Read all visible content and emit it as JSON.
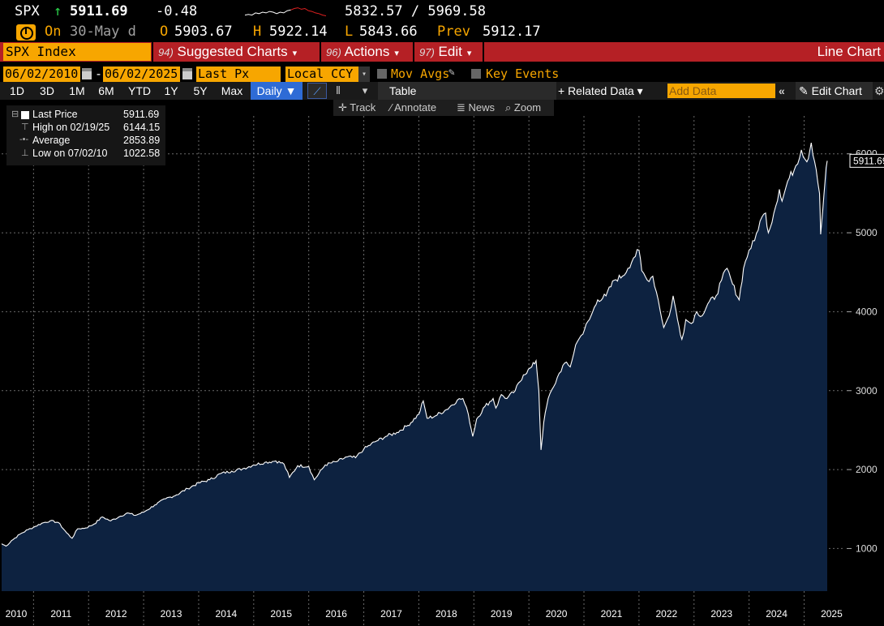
{
  "quote": {
    "ticker": "SPX",
    "arrow": "↑",
    "last": "5911.69",
    "change": "-0.48",
    "range": "5832.57 / 5969.58",
    "sparkline": [
      0.3,
      0.35,
      0.3,
      0.45,
      0.4,
      0.5,
      0.45,
      0.55,
      0.5,
      0.4,
      0.5,
      0.45,
      0.6,
      0.65,
      0.75,
      0.8,
      0.7,
      0.75,
      0.6,
      0.55,
      0.45,
      0.4,
      0.3,
      0.25
    ]
  },
  "subquote": {
    "on_label": "On",
    "date": "30-May d",
    "open_label": "O",
    "open": "5903.67",
    "high_label": "H",
    "high": "5922.14",
    "low_label": "L",
    "low": "5843.66",
    "prev_label": "Prev",
    "prev": "5912.17"
  },
  "menubar": {
    "security": "SPX Index",
    "suggested_num": "94)",
    "suggested": "Suggested Charts",
    "actions_num": "96)",
    "actions": "Actions",
    "edit_num": "97)",
    "edit": "Edit",
    "chart_type": "Line Chart"
  },
  "settings": {
    "start_date": "06/02/2010",
    "dash": "-",
    "end_date": "06/02/2025",
    "field": "Last Px",
    "currency": "Local CCY",
    "mov_avgs": "Mov Avgs",
    "key_events": "Key Events"
  },
  "toolbar": {
    "periods": [
      "1D",
      "3D",
      "1M",
      "6M",
      "YTD",
      "1Y",
      "5Y",
      "Max"
    ],
    "frequency": "Daily ▼",
    "table": "Table",
    "related": "+ Related Data ▾",
    "add_data_placeholder": "Add Data",
    "collapse": "«",
    "edit_chart": "✎ Edit Chart",
    "gear": "⚙"
  },
  "tools": {
    "track": "Track",
    "annotate": "Annotate",
    "news": "News",
    "zoom": "Zoom"
  },
  "legend": {
    "rows": [
      {
        "icon": "⊟",
        "name": "Last Price",
        "value": "5911.69"
      },
      {
        "icon": "⊤",
        "name": "High on 02/19/25",
        "value": "6144.15"
      },
      {
        "icon": "-•-",
        "name": "Average",
        "value": "2853.89"
      },
      {
        "icon": "⊥",
        "name": "Low on 07/02/10",
        "value": "1022.58"
      }
    ]
  },
  "chart_data": {
    "type": "area",
    "title": "SPX Index",
    "xlabel": "",
    "ylabel": "",
    "x_range": [
      2010.42,
      2025.42
    ],
    "ylim": [
      460,
      6480
    ],
    "yticks": [
      1000,
      2000,
      3000,
      4000,
      5000,
      6000
    ],
    "xtick_labels": [
      "2010",
      "2011",
      "2012",
      "2013",
      "2014",
      "2015",
      "2016",
      "2017",
      "2018",
      "2019",
      "2020",
      "2021",
      "2022",
      "2023",
      "2024",
      "2025"
    ],
    "last_value_label": "5911.69",
    "series": [
      {
        "name": "Last Price",
        "x": [
          2010.42,
          2010.5,
          2010.6,
          2010.75,
          2010.9,
          2011.0,
          2011.15,
          2011.3,
          2011.45,
          2011.6,
          2011.7,
          2011.8,
          2011.95,
          2012.1,
          2012.25,
          2012.4,
          2012.55,
          2012.7,
          2012.85,
          2013.0,
          2013.2,
          2013.4,
          2013.6,
          2013.8,
          2014.0,
          2014.2,
          2014.4,
          2014.6,
          2014.8,
          2015.0,
          2015.2,
          2015.4,
          2015.55,
          2015.65,
          2015.8,
          2016.0,
          2016.1,
          2016.3,
          2016.5,
          2016.7,
          2016.85,
          2017.0,
          2017.2,
          2017.4,
          2017.6,
          2017.8,
          2018.0,
          2018.08,
          2018.15,
          2018.3,
          2018.5,
          2018.7,
          2018.8,
          2018.9,
          2018.98,
          2019.05,
          2019.2,
          2019.35,
          2019.4,
          2019.5,
          2019.6,
          2019.75,
          2019.9,
          2020.05,
          2020.13,
          2020.18,
          2020.22,
          2020.27,
          2020.35,
          2020.45,
          2020.55,
          2020.65,
          2020.75,
          2020.85,
          2020.95,
          2021.1,
          2021.25,
          2021.4,
          2021.55,
          2021.7,
          2021.8,
          2021.9,
          2022.0,
          2022.05,
          2022.15,
          2022.25,
          2022.35,
          2022.45,
          2022.55,
          2022.62,
          2022.7,
          2022.78,
          2022.85,
          2022.95,
          2023.05,
          2023.15,
          2023.25,
          2023.4,
          2023.5,
          2023.6,
          2023.7,
          2023.82,
          2023.9,
          2024.0,
          2024.1,
          2024.2,
          2024.3,
          2024.35,
          2024.45,
          2024.55,
          2024.6,
          2024.7,
          2024.85,
          2024.95,
          2025.05,
          2025.13,
          2025.22,
          2025.28,
          2025.3,
          2025.34,
          2025.38,
          2025.42
        ],
        "values": [
          1060,
          1030,
          1100,
          1180,
          1240,
          1270,
          1320,
          1350,
          1330,
          1200,
          1130,
          1250,
          1260,
          1310,
          1400,
          1350,
          1400,
          1450,
          1420,
          1460,
          1550,
          1630,
          1680,
          1760,
          1830,
          1870,
          1950,
          1980,
          2010,
          2060,
          2090,
          2110,
          2070,
          1900,
          2050,
          2040,
          1870,
          2060,
          2100,
          2160,
          2150,
          2260,
          2350,
          2420,
          2470,
          2560,
          2700,
          2870,
          2650,
          2680,
          2760,
          2880,
          2900,
          2700,
          2420,
          2640,
          2800,
          2900,
          2780,
          2950,
          2900,
          3000,
          3200,
          3300,
          3380,
          3000,
          2250,
          2600,
          2900,
          3050,
          3220,
          3350,
          3300,
          3580,
          3700,
          3900,
          4150,
          4200,
          4400,
          4450,
          4550,
          4680,
          4780,
          4520,
          4400,
          4450,
          4150,
          3800,
          3950,
          4200,
          3900,
          3650,
          3900,
          3850,
          4000,
          3950,
          4100,
          4200,
          4400,
          4550,
          4350,
          4150,
          4550,
          4780,
          4900,
          5150,
          5250,
          5000,
          5250,
          5550,
          5400,
          5650,
          5850,
          6050,
          5900,
          6140,
          5800,
          5500,
          4980,
          5300,
          5650,
          5912
        ]
      }
    ]
  }
}
